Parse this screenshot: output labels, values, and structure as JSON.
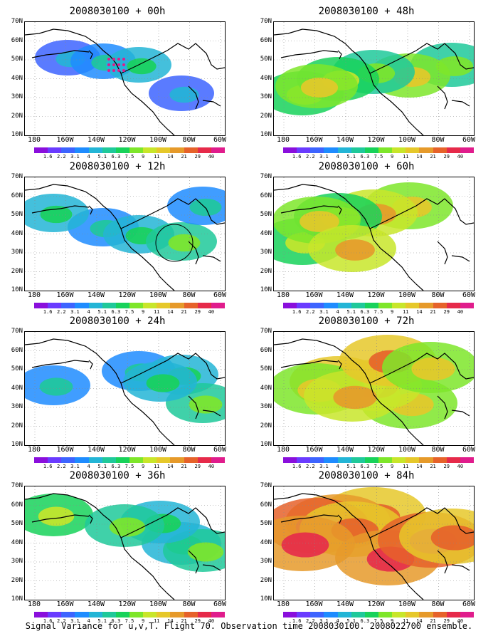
{
  "caption": "Signal Variance for u,v,T. Flight 70. Observation time 2008030100. 2008022700 ensemble.",
  "lat_labels": [
    "70N",
    "60N",
    "50N",
    "40N",
    "30N",
    "20N",
    "10N"
  ],
  "lon_labels": [
    "180",
    "160W",
    "140W",
    "120W",
    "100W",
    "80W",
    "60W"
  ],
  "colorbar": {
    "levels": [
      "1.6",
      "2.2",
      "3.1",
      "4",
      "5.1",
      "6.3",
      "7.5",
      "9",
      "11",
      "14",
      "21",
      "29",
      "40"
    ],
    "colors": [
      "#8a0fdc",
      "#6a3bff",
      "#3d64ff",
      "#1e8cff",
      "#23b5d6",
      "#1fc99a",
      "#18d25a",
      "#7ee62a",
      "#c8e62a",
      "#e6c82a",
      "#e69a2a",
      "#e6622a",
      "#e62a4a",
      "#e01c8c"
    ]
  },
  "panels": [
    {
      "title": "2008030100 + 00h",
      "variance_level": 0.15,
      "icon": "plume-icon"
    },
    {
      "title": "2008030100 + 12h",
      "variance_level": 0.25
    },
    {
      "title": "2008030100 + 24h",
      "variance_level": 0.3
    },
    {
      "title": "2008030100 + 36h",
      "variance_level": 0.4
    },
    {
      "title": "2008030100 + 48h",
      "variance_level": 0.45
    },
    {
      "title": "2008030100 + 60h",
      "variance_level": 0.55
    },
    {
      "title": "2008030100 + 72h",
      "variance_level": 0.7
    },
    {
      "title": "2008030100 + 84h",
      "variance_level": 0.85
    }
  ]
}
